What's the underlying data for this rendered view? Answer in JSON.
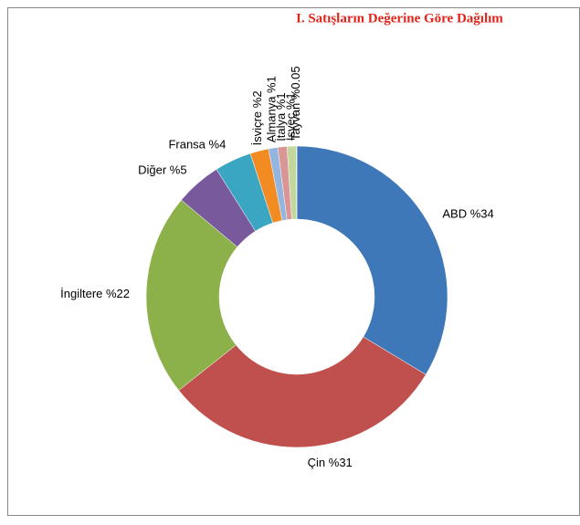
{
  "chart_data": {
    "type": "donut",
    "title": "I. Satışların Değerine Göre Dağılım",
    "values": [
      34,
      31,
      22,
      5,
      4,
      2,
      1,
      1,
      1,
      0.05
    ],
    "value_labels": [
      "ABD %34",
      "Çin %31",
      "İngiltere %22",
      "Diğer %5",
      "Fransa %4",
      "İsviçre %2",
      "Almanya %1",
      "İtalya %1",
      "İsveç %1",
      "Tayvan %0.05"
    ],
    "colors": [
      "#3f78b8",
      "#c0504d",
      "#8db14a",
      "#77599c",
      "#3aa6c2",
      "#f18b22",
      "#93b5df",
      "#d99694",
      "#c3d69b",
      "#b3a2c7"
    ]
  }
}
